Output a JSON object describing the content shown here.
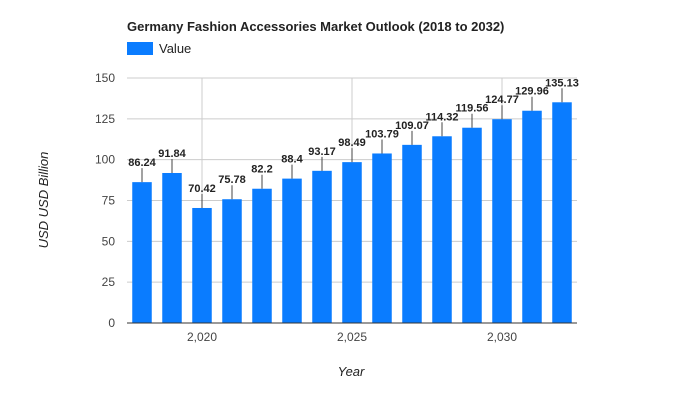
{
  "chart_data": {
    "type": "bar",
    "title": "Germany Fashion Accessories Market Outlook (2018 to 2032)",
    "xlabel": "Year",
    "ylabel": "USD USD Billion",
    "x": [
      2018,
      2019,
      2020,
      2021,
      2022,
      2023,
      2024,
      2025,
      2026,
      2027,
      2028,
      2029,
      2030,
      2031,
      2032
    ],
    "series": [
      {
        "name": "Value",
        "values": [
          86.24,
          91.84,
          70.42,
          75.78,
          82.2,
          88.4,
          93.17,
          98.49,
          103.79,
          109.07,
          114.32,
          119.56,
          124.77,
          129.96,
          135.13
        ],
        "labels": [
          "86.24",
          "91.84",
          "70.42",
          "75.78",
          "82.2",
          "88.4",
          "93.17",
          "98.49",
          "103.79",
          "109.07",
          "114.32",
          "119.56",
          "124.77",
          "129.96",
          "135.13"
        ]
      }
    ],
    "ylim": [
      0,
      150
    ],
    "yticks": [
      0,
      25,
      50,
      75,
      100,
      125,
      150
    ],
    "ytick_labels": [
      "0",
      "25",
      "50",
      "75",
      "100",
      "125",
      "150"
    ],
    "xticks": [
      2020,
      2025,
      2030
    ],
    "xtick_labels": [
      "2,020",
      "2,025",
      "2,030"
    ],
    "legend": "top-left",
    "grid": true,
    "colors": {
      "bar": "#0a7cff",
      "grid": "#cccccc",
      "axis": "#333333",
      "text": "#222222",
      "muted": "#444444"
    }
  }
}
